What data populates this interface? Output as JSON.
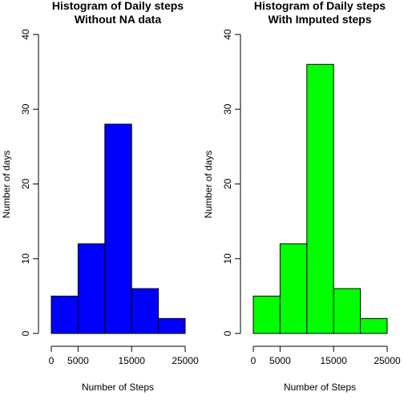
{
  "chart_data": [
    {
      "type": "histogram",
      "title": "Histogram of Daily steps",
      "subtitle": "Without NA data",
      "xlabel": "Number of Steps",
      "ylabel": "Number of days",
      "bins": [
        [
          0,
          5000
        ],
        [
          5000,
          10000
        ],
        [
          10000,
          15000
        ],
        [
          15000,
          20000
        ],
        [
          20000,
          25000
        ]
      ],
      "values": [
        5,
        12,
        28,
        6,
        2
      ],
      "xticks": [
        0,
        5000,
        15000,
        25000
      ],
      "xtick_labels": [
        "0",
        "5000",
        "15000",
        "25000"
      ],
      "yticks": [
        0,
        10,
        20,
        30,
        40
      ],
      "ytick_labels": [
        "0",
        "10",
        "20",
        "30",
        "40"
      ],
      "ylim": [
        0,
        40
      ],
      "xlim": [
        0,
        25000
      ],
      "bar_color": "#0000ff",
      "grid": false
    },
    {
      "type": "histogram",
      "title": "Histogram of Daily steps",
      "subtitle": "With Imputed steps",
      "xlabel": "Number of Steps",
      "ylabel": "Number of days",
      "bins": [
        [
          0,
          5000
        ],
        [
          5000,
          10000
        ],
        [
          10000,
          15000
        ],
        [
          15000,
          20000
        ],
        [
          20000,
          25000
        ]
      ],
      "values": [
        5,
        12,
        36,
        6,
        2
      ],
      "xticks": [
        0,
        5000,
        15000,
        25000
      ],
      "xtick_labels": [
        "0",
        "5000",
        "15000",
        "25000"
      ],
      "yticks": [
        0,
        10,
        20,
        30,
        40
      ],
      "ytick_labels": [
        "0",
        "10",
        "20",
        "30",
        "40"
      ],
      "ylim": [
        0,
        40
      ],
      "xlim": [
        0,
        25000
      ],
      "bar_color": "#00ff00",
      "grid": false
    }
  ]
}
